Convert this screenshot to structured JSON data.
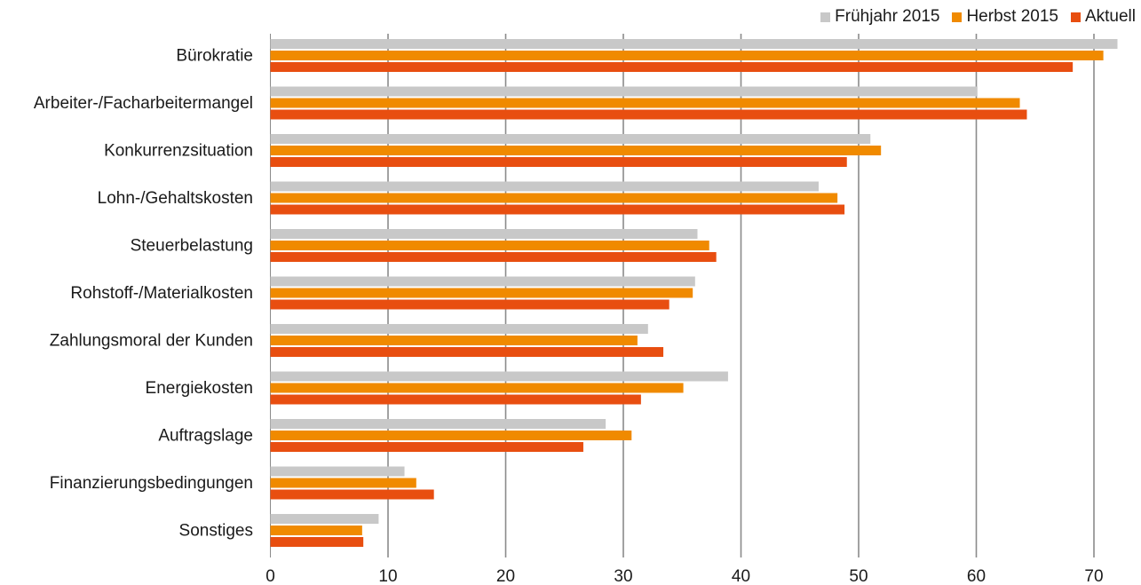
{
  "chart_data": {
    "type": "bar",
    "orientation": "horizontal",
    "categories": [
      "Bürokratie",
      "Arbeiter-/Facharbeitermangel",
      "Konkurrenzsituation",
      "Lohn-/Gehaltskosten",
      "Steuerbelastung",
      "Rohstoff-/Materialkosten",
      "Zahlungsmoral der Kunden",
      "Energiekosten",
      "Auftragslage",
      "Finanzierungsbedingungen",
      "Sonstiges"
    ],
    "series": [
      {
        "name": "Frühjahr 2015",
        "color": "#c8c8c8",
        "values": [
          72.0,
          60.1,
          51.0,
          46.6,
          36.3,
          36.1,
          32.1,
          38.9,
          28.5,
          11.4,
          9.2
        ]
      },
      {
        "name": "Herbst 2015",
        "color": "#f08a00",
        "values": [
          70.8,
          63.7,
          51.9,
          48.2,
          37.3,
          35.9,
          31.2,
          35.1,
          30.7,
          12.4,
          7.8
        ]
      },
      {
        "name": "Aktuell",
        "color": "#e84e10",
        "values": [
          68.2,
          64.3,
          49.0,
          48.8,
          37.9,
          33.9,
          33.4,
          31.5,
          26.6,
          13.9,
          7.9
        ]
      }
    ],
    "xticks": [
      "0",
      "10",
      "20",
      "30",
      "40",
      "50",
      "60",
      "70"
    ],
    "xlim": [
      0,
      72
    ],
    "grid": true,
    "legend": "top-right",
    "title": "",
    "xlabel": "",
    "ylabel": ""
  }
}
